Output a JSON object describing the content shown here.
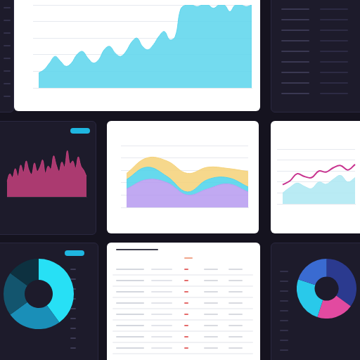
{
  "chart_data": [
    {
      "type": "area",
      "color": "#5ed5ec",
      "values": [
        18,
        22,
        30,
        38,
        32,
        26,
        30,
        40,
        44,
        36,
        30,
        34,
        46,
        50,
        42,
        38,
        44,
        55,
        60,
        50,
        46,
        52,
        62,
        68,
        58,
        62,
        95,
        100,
        100,
        98,
        100,
        100,
        96,
        100,
        100,
        92,
        100,
        100,
        98,
        100
      ],
      "ylim": [
        0,
        100
      ],
      "yticks": [
        0,
        20,
        40,
        60,
        80,
        100
      ],
      "grid": true,
      "tick_labels": false
    },
    {
      "type": "area",
      "color": "#c2407c",
      "values": [
        30,
        45,
        38,
        55,
        40,
        62,
        48,
        70,
        52,
        44,
        66,
        50,
        58,
        72,
        46,
        60,
        54,
        80,
        62,
        50,
        68,
        58,
        90,
        64,
        70,
        56,
        78,
        60,
        52,
        40
      ],
      "ylim": [
        0,
        100
      ],
      "yticks": [
        0,
        20,
        40,
        60,
        80,
        100
      ],
      "grid": false,
      "tick_labels": false
    },
    {
      "type": "area",
      "stacked": true,
      "series": [
        {
          "color": "#b79cf0",
          "values": [
            30,
            45,
            40,
            20,
            30,
            38,
            25
          ]
        },
        {
          "color": "#4fd3ea",
          "values": [
            15,
            20,
            10,
            5,
            15,
            10,
            8
          ]
        },
        {
          "color": "#f5d27a",
          "values": [
            10,
            15,
            25,
            30,
            20,
            15,
            25
          ]
        }
      ],
      "ylim": [
        0,
        100
      ],
      "yticks": [
        0,
        20,
        40,
        60,
        80,
        100
      ],
      "grid": true,
      "tick_labels": false
    },
    {
      "type": "line",
      "series": [
        {
          "type": "area",
          "color": "#aee8f2",
          "values": [
            20,
            30,
            38,
            32,
            28,
            40,
            36,
            45,
            52,
            40,
            48
          ]
        },
        {
          "type": "line",
          "color": "#c8338f",
          "values": [
            35,
            42,
            55,
            50,
            48,
            60,
            58,
            66,
            70,
            62,
            72
          ]
        }
      ],
      "ylim": [
        0,
        100
      ],
      "yticks": [
        0,
        20,
        40,
        60,
        80,
        100
      ],
      "grid": true,
      "tick_labels": false
    },
    {
      "type": "doughnut",
      "values": [
        40,
        25,
        20,
        15
      ],
      "colors": [
        "#27e0f5",
        "#1a8fb8",
        "#13556e",
        "#0d3140"
      ]
    },
    {
      "type": "doughnut",
      "values": [
        35,
        20,
        25,
        20
      ],
      "colors": [
        "#2b3a8f",
        "#e24aa0",
        "#29c9ea",
        "#3a6bd1"
      ]
    }
  ]
}
